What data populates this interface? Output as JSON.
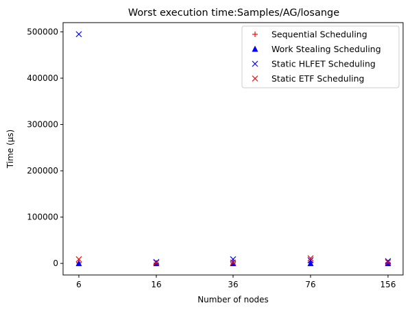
{
  "chart_data": {
    "type": "scatter",
    "title": "Worst execution time:Samples/AG/losange",
    "xlabel": "Number of nodes",
    "ylabel": "Time (µs)",
    "categories": [
      "6",
      "16",
      "36",
      "76",
      "156"
    ],
    "ylim": [
      -25000,
      520000
    ],
    "yticks": [
      0,
      100000,
      200000,
      300000,
      400000,
      500000
    ],
    "ytick_labels": [
      "0",
      "100000",
      "200000",
      "300000",
      "400000",
      "500000"
    ],
    "grid": false,
    "legend_position": "top-right",
    "series": [
      {
        "name": "Sequential Scheduling",
        "marker": "plus",
        "color": "#ff0000",
        "values": [
          1500,
          800,
          1200,
          2000,
          1500
        ]
      },
      {
        "name": "Work Stealing Scheduling",
        "marker": "triangle",
        "color": "#0000ff",
        "values": [
          0,
          0,
          0,
          0,
          0
        ]
      },
      {
        "name": "Static HLFET Scheduling",
        "marker": "x",
        "color": "#0000ff",
        "values": [
          495000,
          3000,
          9000,
          7000,
          5000
        ]
      },
      {
        "name": "Static ETF Scheduling",
        "marker": "x",
        "color": "#ff0000",
        "values": [
          9000,
          1500,
          2000,
          11000,
          2500
        ]
      }
    ]
  }
}
